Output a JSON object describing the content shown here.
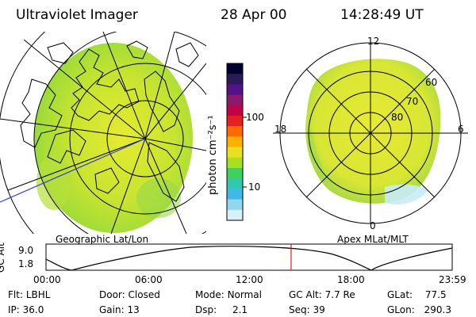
{
  "header": {
    "title": "Ultraviolet Imager",
    "date": "28 Apr 00",
    "time": "14:28:49 UT"
  },
  "geo_panel": {
    "label": "Geographic Lat/Lon"
  },
  "polar_panel": {
    "label": "Apex MLat/MLT",
    "mlt_labels": {
      "top": "12",
      "left": "18",
      "right": "6",
      "bottom": "0"
    },
    "mlat_labels": [
      "60",
      "70",
      "80"
    ]
  },
  "colorbar": {
    "unit_label": "photon cm⁻²s⁻¹",
    "ticks": [
      "100",
      "10"
    ],
    "colors": [
      "#000033",
      "#2a1a55",
      "#551188",
      "#8b1a6e",
      "#c4004a",
      "#e52020",
      "#ff6a00",
      "#ffb000",
      "#e8e020",
      "#a8e020",
      "#40d060",
      "#30c8b0",
      "#40b8e8",
      "#90d8f0",
      "#d8f0f8"
    ]
  },
  "timeline": {
    "y_axis_label": "GC Alt",
    "y_ticks": [
      "9.0",
      "1.8"
    ],
    "x_ticks": [
      "00:00",
      "06:00",
      "12:00",
      "18:00",
      "23:59"
    ],
    "current_time_fraction": 0.6034
  },
  "info": {
    "row1": [
      {
        "label": "Flt:",
        "value": "LBHL"
      },
      {
        "label": "Door:",
        "value": "Closed"
      },
      {
        "label": "Mode:",
        "value": "Normal"
      },
      {
        "label": "GC Alt:",
        "value": "7.7 Re"
      },
      {
        "label": "GLat:",
        "value": "77.5"
      }
    ],
    "row2": [
      {
        "label": "IP:",
        "value": "36.0"
      },
      {
        "label": "Gain:",
        "value": "13"
      },
      {
        "label": "Dsp:",
        "value": "2.1"
      },
      {
        "label": "Seq:",
        "value": "39"
      },
      {
        "label": "GLon:",
        "value": "290.3"
      }
    ]
  }
}
